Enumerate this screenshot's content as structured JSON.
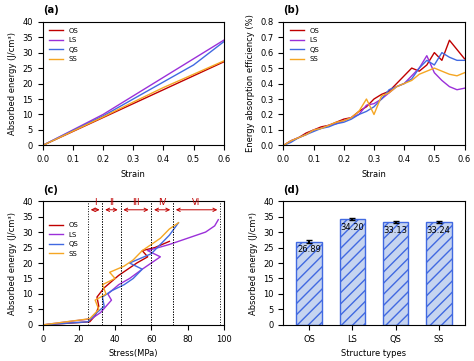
{
  "chart_data": [
    {
      "type": "line",
      "title": "(a)",
      "x_label": "Strain",
      "y_label": "Absorbed energy (J/cm³)",
      "x": [
        0.0,
        0.1,
        0.2,
        0.3,
        0.4,
        0.5,
        0.6
      ],
      "series": [
        {
          "name": "OS",
          "color": "#c00000",
          "values": [
            0,
            4.5,
            9,
            13.5,
            18,
            22.5,
            27
          ]
        },
        {
          "name": "LS",
          "color": "#9b30d9",
          "values": [
            0,
            5,
            10,
            16,
            22,
            28,
            34
          ]
        },
        {
          "name": "QS",
          "color": "#4169e1",
          "values": [
            0,
            4.8,
            9.5,
            15,
            20.5,
            26,
            33.5
          ]
        },
        {
          "name": "SS",
          "color": "#f5a623",
          "values": [
            0,
            4.6,
            9.2,
            14,
            18.7,
            23,
            27.3
          ]
        }
      ],
      "xlim": [
        0.0,
        0.6
      ],
      "xticks": [
        0.0,
        0.1,
        0.2,
        0.3,
        0.4,
        0.5,
        0.6
      ],
      "ylim": [
        0,
        40
      ],
      "yticks": [
        0,
        5,
        10,
        15,
        20,
        25,
        30,
        35,
        40
      ],
      "legend": "upper left"
    },
    {
      "type": "line",
      "title": "(b)",
      "x_label": "Strain",
      "y_label": "Energy absorption efficiency (%)",
      "x": [
        0.0,
        0.025,
        0.05,
        0.075,
        0.1,
        0.125,
        0.15,
        0.175,
        0.2,
        0.225,
        0.25,
        0.275,
        0.3,
        0.325,
        0.35,
        0.375,
        0.4,
        0.425,
        0.45,
        0.475,
        0.5,
        0.525,
        0.55,
        0.575,
        0.6
      ],
      "series": [
        {
          "name": "OS",
          "color": "#c00000",
          "values": [
            0,
            0.03,
            0.05,
            0.08,
            0.1,
            0.12,
            0.13,
            0.15,
            0.17,
            0.18,
            0.22,
            0.25,
            0.3,
            0.33,
            0.35,
            0.4,
            0.45,
            0.5,
            0.48,
            0.52,
            0.6,
            0.55,
            0.68,
            0.62,
            0.56
          ]
        },
        {
          "name": "LS",
          "color": "#9b30d9",
          "values": [
            0,
            0.03,
            0.05,
            0.07,
            0.1,
            0.11,
            0.13,
            0.14,
            0.16,
            0.18,
            0.2,
            0.26,
            0.27,
            0.3,
            0.34,
            0.38,
            0.4,
            0.45,
            0.5,
            0.58,
            0.47,
            0.42,
            0.38,
            0.36,
            0.37
          ]
        },
        {
          "name": "QS",
          "color": "#4169e1",
          "values": [
            0,
            0.02,
            0.05,
            0.07,
            0.09,
            0.11,
            0.12,
            0.14,
            0.15,
            0.17,
            0.2,
            0.22,
            0.25,
            0.3,
            0.36,
            0.38,
            0.4,
            0.43,
            0.5,
            0.55,
            0.52,
            0.6,
            0.57,
            0.55,
            0.55
          ]
        },
        {
          "name": "SS",
          "color": "#f5a623",
          "values": [
            0,
            0.03,
            0.05,
            0.07,
            0.1,
            0.11,
            0.13,
            0.15,
            0.16,
            0.18,
            0.22,
            0.3,
            0.2,
            0.32,
            0.34,
            0.38,
            0.4,
            0.42,
            0.46,
            0.48,
            0.5,
            0.48,
            0.46,
            0.45,
            0.47
          ]
        }
      ],
      "xlim": [
        0.0,
        0.6
      ],
      "xticks": [
        0.0,
        0.1,
        0.2,
        0.3,
        0.4,
        0.5,
        0.6
      ],
      "ylim": [
        0.0,
        0.8
      ],
      "yticks": [
        0.0,
        0.1,
        0.2,
        0.3,
        0.4,
        0.5,
        0.6,
        0.7,
        0.8
      ],
      "legend": "upper left"
    },
    {
      "type": "line",
      "title": "(c)",
      "x_label": "Stress(MPa)",
      "y_label": "Absorbed energy (J/cm³)",
      "series": [
        {
          "name": "OS",
          "color": "#c00000",
          "x": [
            0,
            26,
            29,
            31,
            30,
            34,
            38,
            42,
            47,
            52,
            58,
            55,
            62,
            66,
            70
          ],
          "values": [
            0,
            1,
            3,
            6,
            9,
            12,
            14,
            16,
            18,
            20,
            22,
            24,
            25,
            26,
            27
          ]
        },
        {
          "name": "LS",
          "color": "#9b30d9",
          "x": [
            0,
            27,
            32,
            35,
            38,
            36,
            42,
            48,
            55,
            60,
            65,
            58,
            70,
            80,
            90,
            95,
            97
          ],
          "values": [
            0,
            2,
            4,
            6,
            8,
            10,
            13,
            15,
            18,
            20,
            22,
            24,
            26,
            28,
            30,
            32,
            34
          ]
        },
        {
          "name": "QS",
          "color": "#4169e1",
          "x": [
            0,
            25,
            30,
            34,
            33,
            38,
            45,
            50,
            55,
            48,
            60,
            65,
            70,
            75
          ],
          "values": [
            0,
            1,
            4,
            6,
            9,
            11,
            13,
            15,
            18,
            20,
            23,
            26,
            29,
            33
          ]
        },
        {
          "name": "SS",
          "color": "#f5a623",
          "x": [
            0,
            26,
            31,
            29,
            35,
            33,
            40,
            37,
            45,
            50,
            55,
            60,
            65,
            70,
            75
          ],
          "values": [
            0,
            2,
            5,
            8,
            10,
            13,
            15,
            17,
            19,
            21,
            24,
            26,
            28,
            31,
            33
          ]
        }
      ],
      "regions": [
        {
          "label": "I",
          "start": 25,
          "end": 33
        },
        {
          "label": "II",
          "start": 33,
          "end": 43
        },
        {
          "label": "III",
          "start": 43,
          "end": 60
        },
        {
          "label": "IV",
          "start": 60,
          "end": 72
        },
        {
          "label": "VI",
          "start": 72,
          "end": 98
        }
      ],
      "xlim": [
        0,
        100
      ],
      "xticks": [
        0,
        20,
        40,
        60,
        80,
        100
      ],
      "ylim": [
        0,
        40
      ],
      "yticks": [
        0,
        5,
        10,
        15,
        20,
        25,
        30,
        35,
        40
      ],
      "legend": "upper left"
    },
    {
      "type": "bar",
      "title": "(d)",
      "x_label": "Structure types",
      "y_label": "Absorbed energy (J/cm³)",
      "categories": [
        "OS",
        "LS",
        "QS",
        "SS"
      ],
      "values": [
        26.89,
        34.2,
        33.13,
        33.24
      ],
      "value_labels": [
        "26.89",
        "34.20",
        "33.13",
        "33.24"
      ],
      "error": [
        0.4,
        0.3,
        0.35,
        0.45
      ],
      "color": "#c6d4f0",
      "data_labels": true,
      "ylim": [
        0,
        40
      ],
      "yticks": [
        0,
        5,
        10,
        15,
        20,
        25,
        30,
        35,
        40
      ]
    }
  ]
}
